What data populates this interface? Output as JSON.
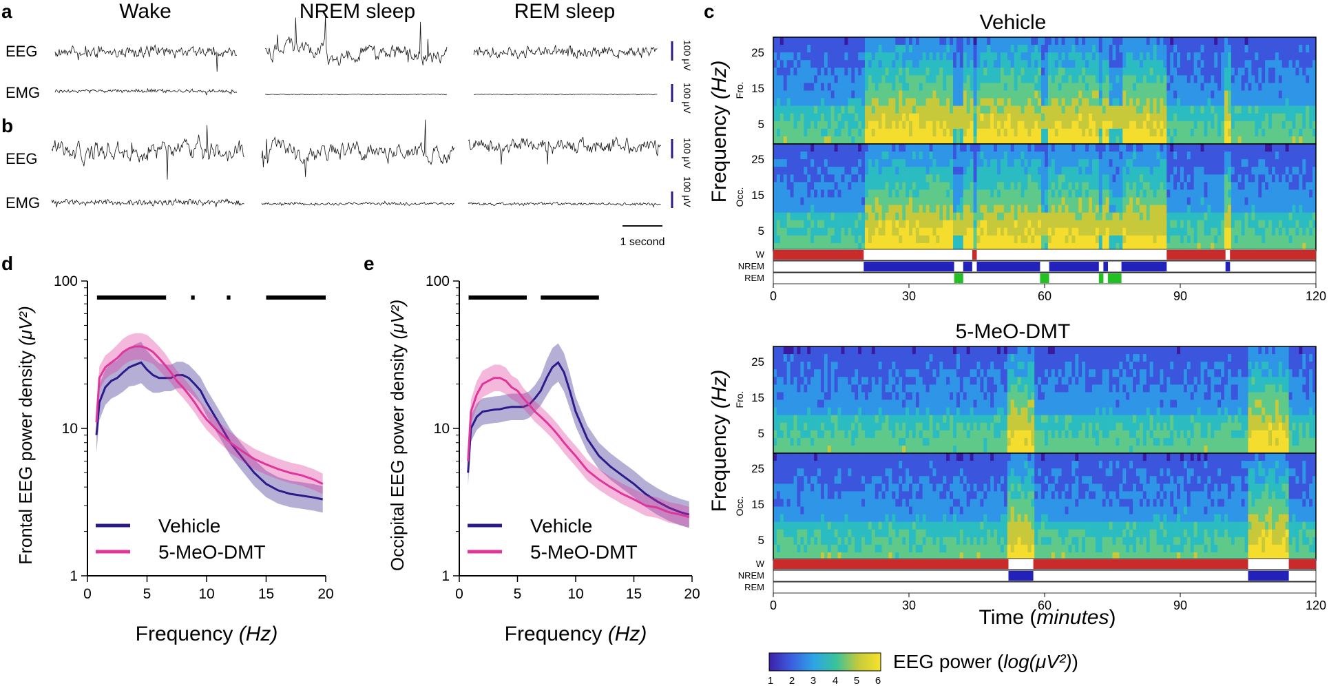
{
  "panels": {
    "a": {
      "letter": "a",
      "states": [
        "Wake",
        "NREM sleep",
        "REM sleep"
      ],
      "signals": [
        "EEG",
        "EMG"
      ],
      "eeg_scale": "100 μV",
      "emg_scale": "100 μV"
    },
    "b": {
      "letter": "b",
      "signals": [
        "EEG",
        "EMG"
      ],
      "eeg_scale": "100 μV",
      "emg_scale": "100 μV",
      "time_bar": "1 second"
    },
    "c": {
      "letter": "c",
      "plots": [
        {
          "title": "Vehicle"
        },
        {
          "title": "5-MeO-DMT"
        }
      ],
      "ylabel_prefix": "Frequency ",
      "ylabel_unit": "(Hz)",
      "region_fro": "Fro.",
      "region_occ": "Occ.",
      "freq_ticks": [
        "25",
        "15",
        "5"
      ],
      "state_labels": [
        "W",
        "NREM",
        "REM"
      ],
      "time_ticks": [
        "0",
        "30",
        "60",
        "90",
        "120"
      ],
      "xlabel_prefix": "Time (",
      "xlabel_unit": "minutes",
      "xlabel_suffix": ")",
      "colorbar": {
        "ticks": [
          "1",
          "2",
          "3",
          "4",
          "5",
          "6"
        ],
        "label_prefix": "EEG power (",
        "label_italic": "log(μV²)",
        "label_suffix": ")"
      },
      "colors": {
        "wake": "#c92a2a",
        "nrem": "#2222bb",
        "rem": "#22c022"
      }
    }
  },
  "chart_data": [
    {
      "type": "line",
      "panel": "d",
      "title": "",
      "xlabel": "Frequency (Hz)",
      "ylabel": "Frontal EEG power density (μV²)",
      "xlim": [
        0,
        20
      ],
      "ylim": [
        1,
        100
      ],
      "yscale": "log",
      "x_ticks": [
        0,
        5,
        10,
        15,
        20
      ],
      "y_ticks": [
        1,
        10,
        100
      ],
      "x": [
        0.75,
        1,
        1.5,
        2,
        2.5,
        3,
        3.5,
        4,
        4.5,
        5,
        5.5,
        6,
        6.5,
        7,
        7.5,
        8,
        8.5,
        9,
        9.5,
        10,
        11,
        12,
        13,
        14,
        15,
        16,
        17,
        18,
        19,
        19.75
      ],
      "series": [
        {
          "name": "Vehicle",
          "color": "#2b1b8a",
          "values": [
            9,
            15,
            19,
            21,
            22,
            24,
            26,
            27,
            28,
            25,
            23,
            22,
            22,
            22,
            23,
            23,
            22,
            20,
            18,
            15,
            11,
            8,
            6.3,
            5,
            4.2,
            3.8,
            3.6,
            3.5,
            3.4,
            3.3
          ],
          "band": [
            0.12,
            0.12,
            0.12,
            0.12,
            0.12,
            0.13,
            0.13,
            0.14,
            0.14,
            0.13,
            0.12,
            0.1,
            0.09,
            0.09,
            0.09,
            0.09,
            0.09,
            0.09,
            0.09,
            0.09,
            0.09,
            0.09,
            0.09,
            0.09,
            0.09,
            0.09,
            0.09,
            0.09,
            0.09,
            0.09
          ]
        },
        {
          "name": "5-MeO-DMT",
          "color": "#e0359a",
          "values": [
            11,
            22,
            26,
            28,
            30,
            33,
            35,
            36,
            36,
            35,
            33,
            30,
            27,
            24,
            21,
            19,
            17,
            15,
            13,
            11.5,
            9.5,
            8,
            7,
            6.2,
            5.7,
            5.3,
            5,
            4.8,
            4.5,
            4.2
          ],
          "band": [
            0.08,
            0.08,
            0.08,
            0.08,
            0.09,
            0.09,
            0.09,
            0.09,
            0.09,
            0.09,
            0.08,
            0.08,
            0.08,
            0.07,
            0.07,
            0.07,
            0.07,
            0.07,
            0.07,
            0.07,
            0.07,
            0.07,
            0.07,
            0.07,
            0.07,
            0.07,
            0.07,
            0.07,
            0.07,
            0.07
          ]
        }
      ],
      "significance_bars": [
        [
          0.8,
          6.6
        ],
        [
          8.7,
          9.0
        ],
        [
          11.7,
          12.0
        ],
        [
          15.0,
          20.0
        ]
      ],
      "legend": "bottom-left"
    },
    {
      "type": "line",
      "panel": "e",
      "title": "",
      "xlabel": "Frequency (Hz)",
      "ylabel": "Occipital EEG power density (μV²)",
      "xlim": [
        0,
        20
      ],
      "ylim": [
        1,
        100
      ],
      "yscale": "log",
      "x_ticks": [
        0,
        5,
        10,
        15,
        20
      ],
      "y_ticks": [
        1,
        10,
        100
      ],
      "x": [
        0.75,
        1,
        1.5,
        2,
        2.5,
        3,
        3.5,
        4,
        4.5,
        5,
        5.5,
        6,
        6.5,
        7,
        7.5,
        8,
        8.5,
        9,
        9.5,
        10,
        11,
        12,
        13,
        14,
        15,
        16,
        17,
        18,
        19,
        19.75
      ],
      "series": [
        {
          "name": "Vehicle",
          "color": "#2b1b8a",
          "values": [
            5,
            10,
            12,
            13,
            13.2,
            13.4,
            13.5,
            13.8,
            14,
            14,
            14,
            14.5,
            16,
            18,
            22,
            26,
            28,
            24,
            18,
            13,
            8.5,
            6.5,
            5.5,
            4.8,
            4.2,
            3.6,
            3.2,
            2.9,
            2.7,
            2.6
          ],
          "band": [
            0.09,
            0.09,
            0.09,
            0.09,
            0.09,
            0.09,
            0.09,
            0.09,
            0.09,
            0.09,
            0.09,
            0.09,
            0.09,
            0.1,
            0.12,
            0.13,
            0.13,
            0.13,
            0.12,
            0.1,
            0.09,
            0.09,
            0.09,
            0.09,
            0.09,
            0.09,
            0.09,
            0.09,
            0.09,
            0.09
          ]
        },
        {
          "name": "5-MeO-DMT",
          "color": "#e0359a",
          "values": [
            6,
            13,
            17,
            20,
            21,
            22,
            22,
            21,
            19,
            18,
            16,
            14.5,
            13,
            12,
            11,
            10,
            9,
            8,
            7.2,
            6.5,
            5.2,
            4.5,
            4,
            3.6,
            3.3,
            3,
            2.9,
            2.7,
            2.6,
            2.5
          ],
          "band": [
            0.08,
            0.08,
            0.09,
            0.09,
            0.09,
            0.09,
            0.09,
            0.09,
            0.08,
            0.08,
            0.07,
            0.07,
            0.07,
            0.07,
            0.07,
            0.07,
            0.07,
            0.07,
            0.07,
            0.07,
            0.07,
            0.07,
            0.07,
            0.07,
            0.07,
            0.07,
            0.07,
            0.07,
            0.07,
            0.07
          ]
        }
      ],
      "significance_bars": [
        [
          0.8,
          5.8
        ],
        [
          7.0,
          12.0
        ]
      ],
      "legend": "bottom-left"
    },
    {
      "type": "heatmap",
      "panel": "c",
      "title": "Vehicle",
      "xlabel": "Time (minutes)",
      "ylabel": "Frequency (Hz)",
      "xlim": [
        0,
        120
      ],
      "ylim": [
        0,
        28
      ],
      "power_range": [
        1,
        6
      ],
      "hypnogram": [
        {
          "state": "W",
          "start": 0,
          "end": 20
        },
        {
          "state": "NREM",
          "start": 20,
          "end": 40
        },
        {
          "state": "REM",
          "start": 40,
          "end": 42
        },
        {
          "state": "NREM",
          "start": 42,
          "end": 44
        },
        {
          "state": "W",
          "start": 44,
          "end": 45
        },
        {
          "state": "NREM",
          "start": 45,
          "end": 59
        },
        {
          "state": "REM",
          "start": 59,
          "end": 61
        },
        {
          "state": "NREM",
          "start": 61,
          "end": 72
        },
        {
          "state": "REM",
          "start": 72,
          "end": 73
        },
        {
          "state": "NREM",
          "start": 73,
          "end": 74
        },
        {
          "state": "REM",
          "start": 74,
          "end": 77
        },
        {
          "state": "NREM",
          "start": 77,
          "end": 87
        },
        {
          "state": "W",
          "start": 87,
          "end": 100
        },
        {
          "state": "NREM",
          "start": 100,
          "end": 101
        },
        {
          "state": "W",
          "start": 101,
          "end": 120
        }
      ]
    },
    {
      "type": "heatmap",
      "panel": "c",
      "title": "5-MeO-DMT",
      "xlabel": "Time (minutes)",
      "ylabel": "Frequency (Hz)",
      "xlim": [
        0,
        120
      ],
      "ylim": [
        0,
        28
      ],
      "power_range": [
        1,
        6
      ],
      "hypnogram": [
        {
          "state": "W",
          "start": 0,
          "end": 52
        },
        {
          "state": "NREM",
          "start": 52,
          "end": 57.5
        },
        {
          "state": "W",
          "start": 57.5,
          "end": 105
        },
        {
          "state": "NREM",
          "start": 105,
          "end": 114
        },
        {
          "state": "W",
          "start": 114,
          "end": 120
        }
      ]
    }
  ]
}
